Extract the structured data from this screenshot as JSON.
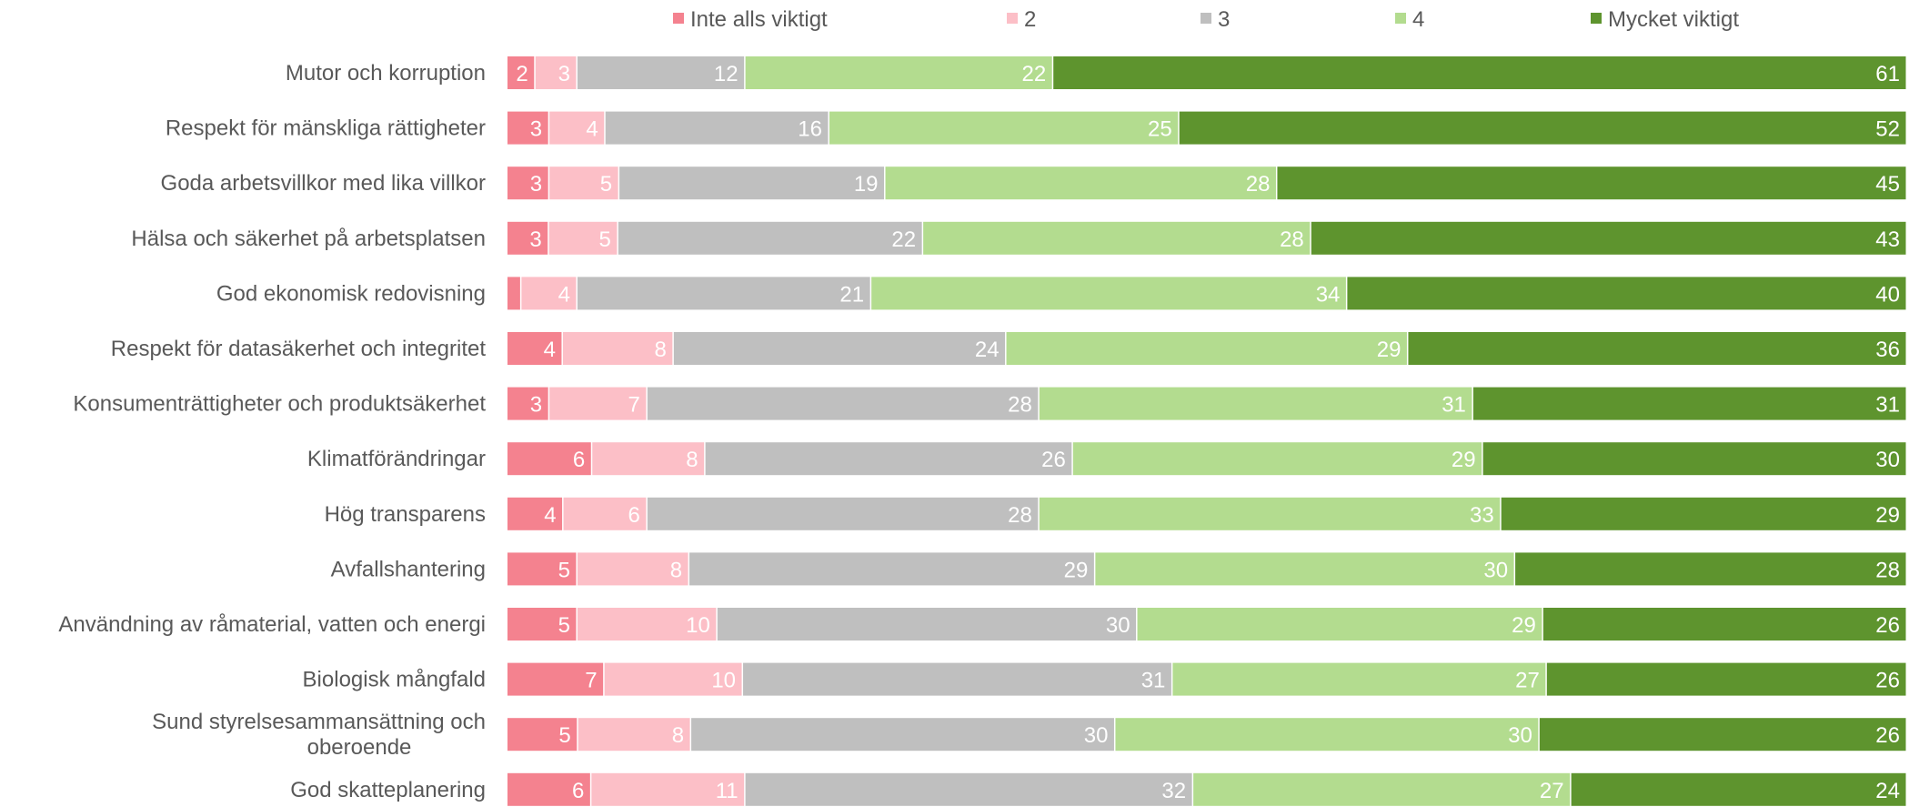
{
  "chart_data": {
    "type": "bar",
    "orientation": "horizontal",
    "stacked": true,
    "percent_stacked": true,
    "legend_position": "top",
    "grid": false,
    "categories": [
      "Mutor och korruption",
      "Respekt för mänskliga rättigheter",
      "Goda arbetsvillkor med lika villkor",
      "Hälsa och säkerhet på arbetsplatsen",
      "God ekonomisk redovisning",
      "Respekt för datasäkerhet och integritet",
      "Konsumenträttigheter och produktsäkerhet",
      "Klimatförändringar",
      "Hög transparens",
      "Avfallshantering",
      "Användning av råmaterial, vatten och energi",
      "Biologisk mångfald",
      "Sund styrelsesammansättning och oberoende",
      "God skatteplanering"
    ],
    "series": [
      {
        "name": "Inte alls viktigt",
        "color": "#f4828f",
        "values": [
          2,
          3,
          3,
          3,
          1,
          4,
          3,
          6,
          4,
          5,
          5,
          7,
          5,
          6
        ],
        "labels": [
          "2",
          "3",
          "3",
          "3",
          "",
          "4",
          "3",
          "6",
          "4",
          "5",
          "5",
          "7",
          "5",
          "6"
        ]
      },
      {
        "name": "2",
        "color": "#fcbfc7",
        "values": [
          3,
          4,
          5,
          5,
          4,
          8,
          7,
          8,
          6,
          8,
          10,
          10,
          8,
          11
        ],
        "labels": [
          "3",
          "4",
          "5",
          "5",
          "4",
          "8",
          "7",
          "8",
          "6",
          "8",
          "10",
          "10",
          "8",
          "11"
        ]
      },
      {
        "name": "3",
        "color": "#bfbfbf",
        "values": [
          12,
          16,
          19,
          22,
          21,
          24,
          28,
          26,
          28,
          29,
          30,
          31,
          30,
          32
        ],
        "labels": [
          "12",
          "16",
          "19",
          "22",
          "21",
          "24",
          "28",
          "26",
          "28",
          "29",
          "30",
          "31",
          "30",
          "32"
        ]
      },
      {
        "name": "4",
        "color": "#b3dc8f",
        "values": [
          22,
          25,
          28,
          28,
          34,
          29,
          31,
          29,
          33,
          30,
          29,
          27,
          30,
          27
        ],
        "labels": [
          "22",
          "25",
          "28",
          "28",
          "34",
          "29",
          "31",
          "29",
          "33",
          "30",
          "29",
          "27",
          "30",
          "27"
        ]
      },
      {
        "name": "Mycket viktigt",
        "color": "#5e942e",
        "values": [
          61,
          52,
          45,
          43,
          40,
          36,
          31,
          30,
          29,
          28,
          26,
          26,
          26,
          24
        ],
        "labels": [
          "61",
          "52",
          "45",
          "43",
          "40",
          "36",
          "31",
          "30",
          "29",
          "28",
          "26",
          "26",
          "26",
          "24"
        ]
      }
    ]
  }
}
